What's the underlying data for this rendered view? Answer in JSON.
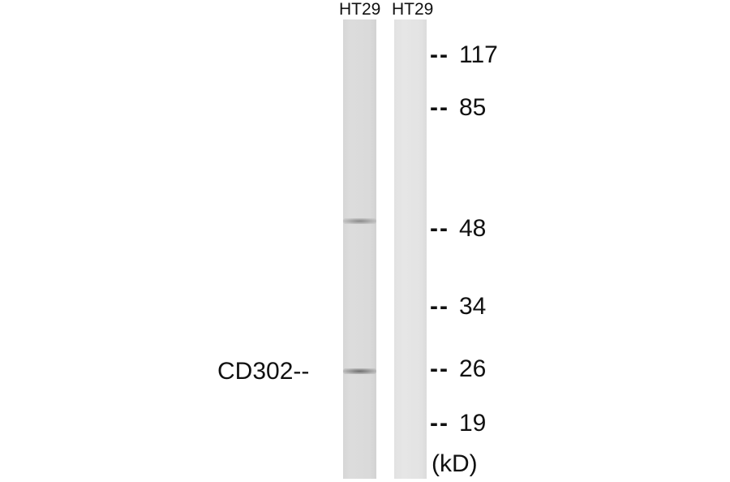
{
  "lanes": [
    {
      "label": "HT29"
    },
    {
      "label": "HT29"
    }
  ],
  "markers": [
    {
      "dash": "--",
      "value": "117"
    },
    {
      "dash": "--",
      "value": "85"
    },
    {
      "dash": "--",
      "value": "48"
    },
    {
      "dash": "--",
      "value": "34"
    },
    {
      "dash": "--",
      "value": "26"
    },
    {
      "dash": "--",
      "value": "19"
    }
  ],
  "unit": "(kD)",
  "protein_label": "CD302--",
  "bands": [
    {
      "lane": 1,
      "approx_kd": 48,
      "intensity": "weak"
    },
    {
      "lane": 1,
      "approx_kd": 26,
      "intensity": "moderate",
      "target": "CD302"
    }
  ]
}
